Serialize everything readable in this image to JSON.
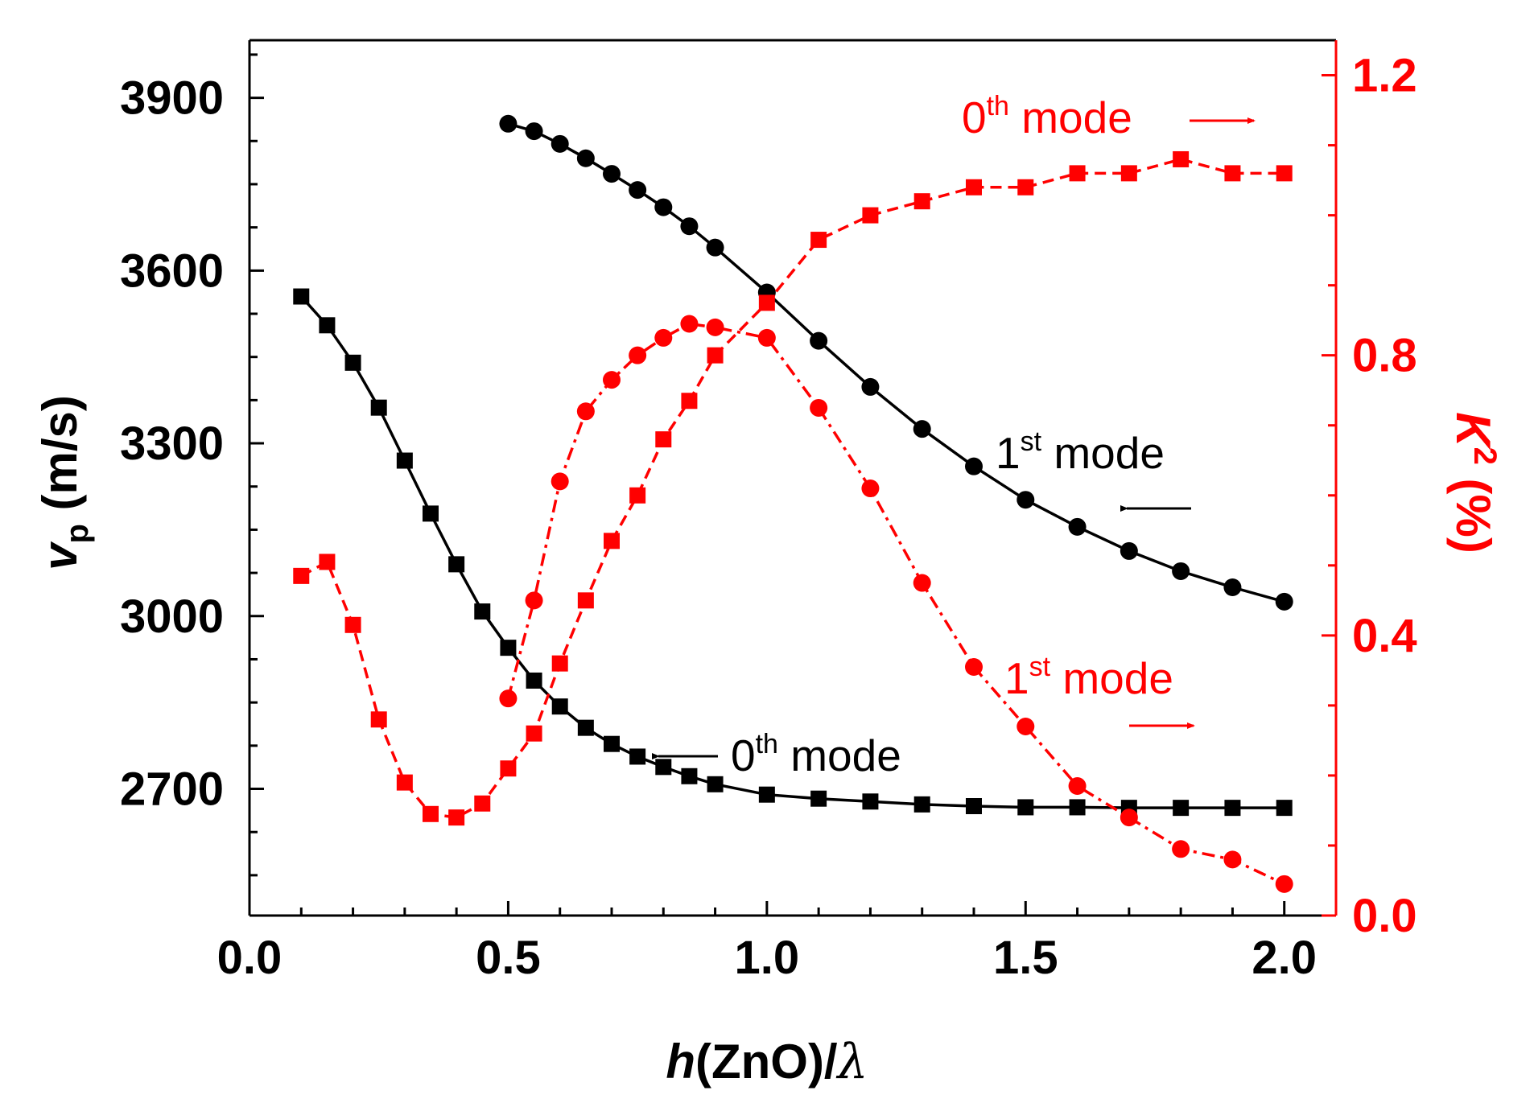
{
  "chart_data": {
    "type": "line",
    "x_axis": {
      "label_italic": "h",
      "label_rest": "(ZnO)/",
      "label_symbol": "λ",
      "range": [
        0.0,
        2.1
      ],
      "ticks": [
        "0.0",
        "0.5",
        "1.0",
        "1.5",
        "2.0"
      ],
      "tick_values": [
        0.0,
        0.5,
        1.0,
        1.5,
        2.0
      ]
    },
    "y_left_axis": {
      "label_main": "v",
      "label_sub": "p",
      "label_units": " (m/s)",
      "range": [
        2480,
        4000
      ],
      "ticks": [
        "2700",
        "3000",
        "3300",
        "3600",
        "3900"
      ],
      "tick_values": [
        2700,
        3000,
        3300,
        3600,
        3900
      ],
      "color": "#000000"
    },
    "y_right_axis": {
      "label_main": "K",
      "label_sup": "2",
      "label_units": " (%)",
      "range": [
        0.0,
        1.25
      ],
      "ticks": [
        "0.0",
        "0.4",
        "0.8",
        "1.2"
      ],
      "tick_values": [
        0.0,
        0.4,
        0.8,
        1.2
      ],
      "color": "#ff0000"
    },
    "series": [
      {
        "name": "vp 0th mode",
        "axis": "left",
        "marker": "square",
        "color": "#000000",
        "line": "solid",
        "x": [
          0.1,
          0.15,
          0.2,
          0.25,
          0.3,
          0.35,
          0.4,
          0.45,
          0.5,
          0.55,
          0.6,
          0.65,
          0.7,
          0.75,
          0.8,
          0.85,
          0.9,
          1.0,
          1.1,
          1.2,
          1.3,
          1.4,
          1.5,
          1.6,
          1.7,
          1.8,
          1.9,
          2.0
        ],
        "values": [
          3555,
          3505,
          3440,
          3362,
          3270,
          3178,
          3090,
          3008,
          2945,
          2888,
          2843,
          2806,
          2778,
          2756,
          2738,
          2722,
          2708,
          2690,
          2683,
          2678,
          2673,
          2670,
          2668,
          2668,
          2667,
          2667,
          2667,
          2667
        ]
      },
      {
        "name": "vp 1st mode",
        "axis": "left",
        "marker": "circle",
        "color": "#000000",
        "line": "solid",
        "x": [
          0.5,
          0.55,
          0.6,
          0.65,
          0.7,
          0.75,
          0.8,
          0.85,
          0.9,
          1.0,
          1.1,
          1.2,
          1.3,
          1.4,
          1.5,
          1.6,
          1.7,
          1.8,
          1.9,
          2.0
        ],
        "values": [
          3855,
          3842,
          3820,
          3795,
          3768,
          3740,
          3710,
          3677,
          3640,
          3562,
          3478,
          3398,
          3325,
          3260,
          3202,
          3155,
          3113,
          3078,
          3050,
          3025
        ]
      },
      {
        "name": "K2 0th mode",
        "axis": "right",
        "marker": "square",
        "color": "#ff0000",
        "line": "dashed",
        "x": [
          0.1,
          0.15,
          0.2,
          0.25,
          0.3,
          0.35,
          0.4,
          0.45,
          0.5,
          0.55,
          0.6,
          0.65,
          0.7,
          0.75,
          0.8,
          0.85,
          0.9,
          1.0,
          1.1,
          1.2,
          1.3,
          1.4,
          1.5,
          1.6,
          1.7,
          1.8,
          1.9,
          2.0
        ],
        "values": [
          0.485,
          0.505,
          0.415,
          0.28,
          0.19,
          0.145,
          0.14,
          0.16,
          0.21,
          0.26,
          0.36,
          0.45,
          0.535,
          0.6,
          0.68,
          0.735,
          0.8,
          0.875,
          0.965,
          1.0,
          1.02,
          1.04,
          1.04,
          1.06,
          1.06,
          1.08,
          1.06,
          1.06
        ]
      },
      {
        "name": "K2 1st mode",
        "axis": "right",
        "marker": "circle",
        "color": "#ff0000",
        "line": "dashdot",
        "x": [
          0.5,
          0.55,
          0.6,
          0.65,
          0.7,
          0.75,
          0.8,
          0.85,
          0.9,
          1.0,
          1.1,
          1.2,
          1.3,
          1.4,
          1.5,
          1.6,
          1.7,
          1.8,
          1.9,
          2.0
        ],
        "values": [
          0.31,
          0.45,
          0.62,
          0.72,
          0.765,
          0.8,
          0.825,
          0.845,
          0.84,
          0.825,
          0.725,
          0.61,
          0.475,
          0.355,
          0.27,
          0.185,
          0.14,
          0.095,
          0.08,
          0.045
        ]
      }
    ],
    "annotations": [
      {
        "id": "k2-0th",
        "base": "0",
        "sup": "th",
        "rest": " mode",
        "color": "#ff0000",
        "arrow": "right"
      },
      {
        "id": "vp-1st",
        "base": "1",
        "sup": "st",
        "rest": " mode",
        "color": "#000000",
        "arrow": "left"
      },
      {
        "id": "k2-1st",
        "base": "1",
        "sup": "st",
        "rest": " mode",
        "color": "#ff0000",
        "arrow": "right"
      },
      {
        "id": "vp-0th",
        "base": "0",
        "sup": "th",
        "rest": " mode",
        "color": "#000000",
        "arrow": "left"
      }
    ]
  }
}
